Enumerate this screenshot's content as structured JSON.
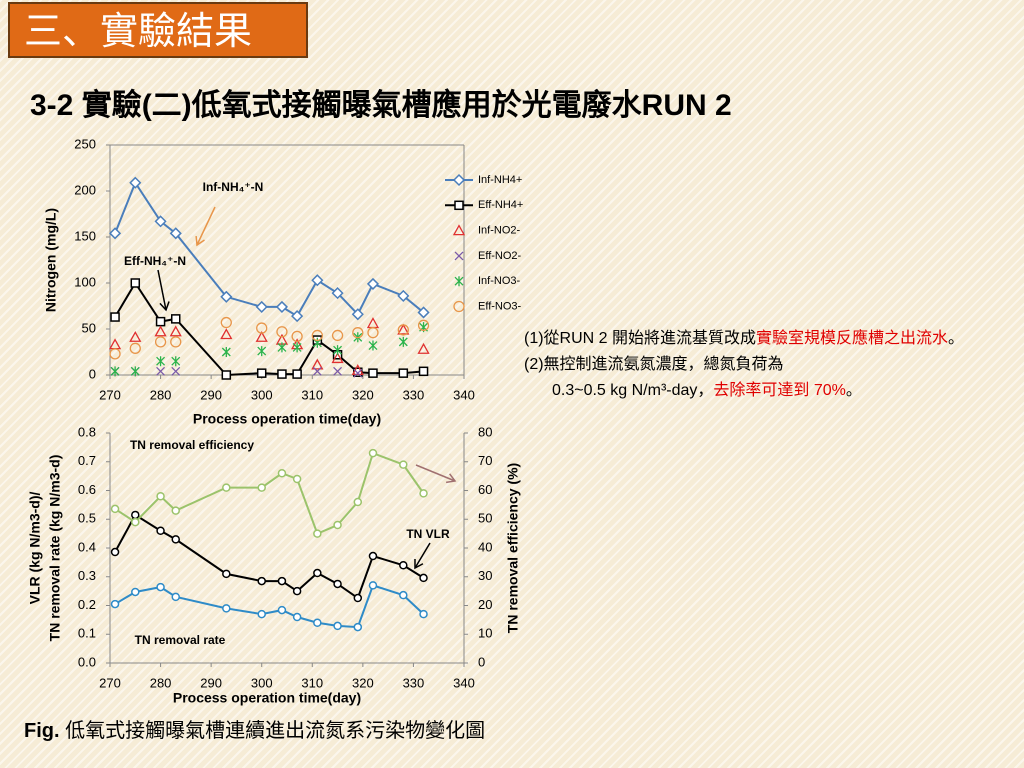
{
  "slide": {
    "header": "三、實驗結果",
    "title": "3-2 實驗(二)低氧式接觸曝氣槽應用於光電廢水RUN 2",
    "notes": [
      [
        {
          "text": "(1)從RUN 2 開始將進流基質改成"
        },
        {
          "text": "實驗室規模反應槽之出流水",
          "color": "#e00000"
        },
        {
          "text": "。"
        }
      ],
      [
        {
          "text": "(2)無控制進流氨氮濃度，總氮負荷為"
        }
      ],
      [
        {
          "text": "0.3~0.5 kg N/m³-day，"
        },
        {
          "text": "去除率可達到 70%",
          "color": "#e00000"
        },
        {
          "text": "。"
        }
      ]
    ],
    "caption_label": "Fig.",
    "caption": "低氧式接觸曝氣槽連續進出流氮系污染物變化圖"
  },
  "chart_data": [
    {
      "type": "line",
      "xlabel": "Process operation time(day)",
      "ylabel": "Nitrogen (mg/L)",
      "x": [
        271,
        275,
        280,
        283,
        293,
        300,
        304,
        307,
        311,
        315,
        319,
        322,
        328,
        332
      ],
      "series": [
        {
          "name": "Inf-NH4+",
          "color": "#4a7ebb",
          "marker": "diamond",
          "line": true,
          "values": [
            154,
            209,
            167,
            154,
            85,
            74,
            74,
            64,
            103,
            89,
            66,
            99,
            86,
            68
          ]
        },
        {
          "name": "Eff-NH4+",
          "color": "#000000",
          "marker": "square",
          "line": true,
          "values": [
            63,
            100,
            58,
            61,
            0,
            2,
            1,
            1,
            38,
            22,
            3,
            2,
            2,
            4
          ]
        },
        {
          "name": "Inf-NO2-",
          "color": "#e03030",
          "marker": "triangle",
          "line": false,
          "values": [
            33,
            41,
            47,
            47,
            44,
            41,
            38,
            33,
            11,
            18,
            5,
            56,
            49,
            28
          ]
        },
        {
          "name": "Eff-NO2-",
          "color": "#7a5aa8",
          "marker": "x",
          "line": false,
          "values": [
            4,
            4,
            4,
            4,
            null,
            null,
            null,
            null,
            4,
            4,
            2,
            null,
            null,
            null
          ]
        },
        {
          "name": "Inf-NO3-",
          "color": "#2bb34b",
          "marker": "asterisk",
          "line": false,
          "values": [
            4,
            4,
            15,
            15,
            25,
            26,
            30,
            30,
            35,
            27,
            41,
            32,
            36,
            52
          ]
        },
        {
          "name": "Eff-NO3-",
          "color": "#e8964a",
          "marker": "circle",
          "line": false,
          "values": [
            23,
            29,
            36,
            36,
            57,
            51,
            47,
            42,
            43,
            43,
            46,
            46,
            49,
            54
          ]
        }
      ],
      "xlim": [
        270,
        340
      ],
      "xticks": [
        270,
        280,
        290,
        300,
        310,
        320,
        330,
        340
      ],
      "ylim": [
        0,
        250
      ],
      "yticks": [
        0,
        50,
        100,
        150,
        200,
        250
      ],
      "annotations": [
        {
          "text": "Inf-NH₄⁺-N",
          "color": "#2e75c0"
        },
        {
          "text": "Eff-NH₄⁺-N",
          "color": "#000000"
        }
      ]
    },
    {
      "type": "line",
      "xlabel": "Process operation time(day)",
      "ylabel": [
        "VLR (kg N/m3-d)/",
        "TN removal rate (kg N/m3-d)"
      ],
      "y2label": "TN  removal efficiency (%)",
      "x": [
        271,
        275,
        280,
        283,
        293,
        300,
        304,
        307,
        311,
        315,
        319,
        322,
        328,
        332
      ],
      "series": [
        {
          "name": "TN VLR",
          "color": "#000000",
          "axis": "y",
          "values": [
            0.386,
            0.515,
            0.46,
            0.43,
            0.31,
            0.285,
            0.285,
            0.25,
            0.313,
            0.275,
            0.226,
            0.372,
            0.34,
            0.296
          ]
        },
        {
          "name": "TN removal rate",
          "color": "#2e8bc8",
          "axis": "y",
          "values": [
            0.205,
            0.247,
            0.264,
            0.23,
            0.19,
            0.17,
            0.184,
            0.16,
            0.14,
            0.129,
            0.125,
            0.27,
            0.236,
            0.17
          ]
        },
        {
          "name": "TN removal efficiency",
          "color": "#9bc36b",
          "axis": "y2",
          "values": [
            53.6,
            49,
            58,
            53,
            61,
            61,
            66,
            64,
            45,
            48,
            56,
            73,
            69,
            59
          ]
        }
      ],
      "xlim": [
        270,
        340
      ],
      "xticks": [
        270,
        280,
        290,
        300,
        310,
        320,
        330,
        340
      ],
      "ylim": [
        0,
        0.8
      ],
      "yticks": [
        {
          "value": 0,
          "label": "0.0"
        },
        0.1,
        0.2,
        0.3,
        0.4,
        0.5,
        0.6,
        0.7,
        0.8
      ],
      "y2lim": [
        0,
        80
      ],
      "y2ticks": [
        0,
        10,
        20,
        30,
        40,
        50,
        60,
        70,
        80
      ],
      "label_colors": [
        "#000000",
        "#2e8bc8",
        "#a07070"
      ]
    }
  ]
}
